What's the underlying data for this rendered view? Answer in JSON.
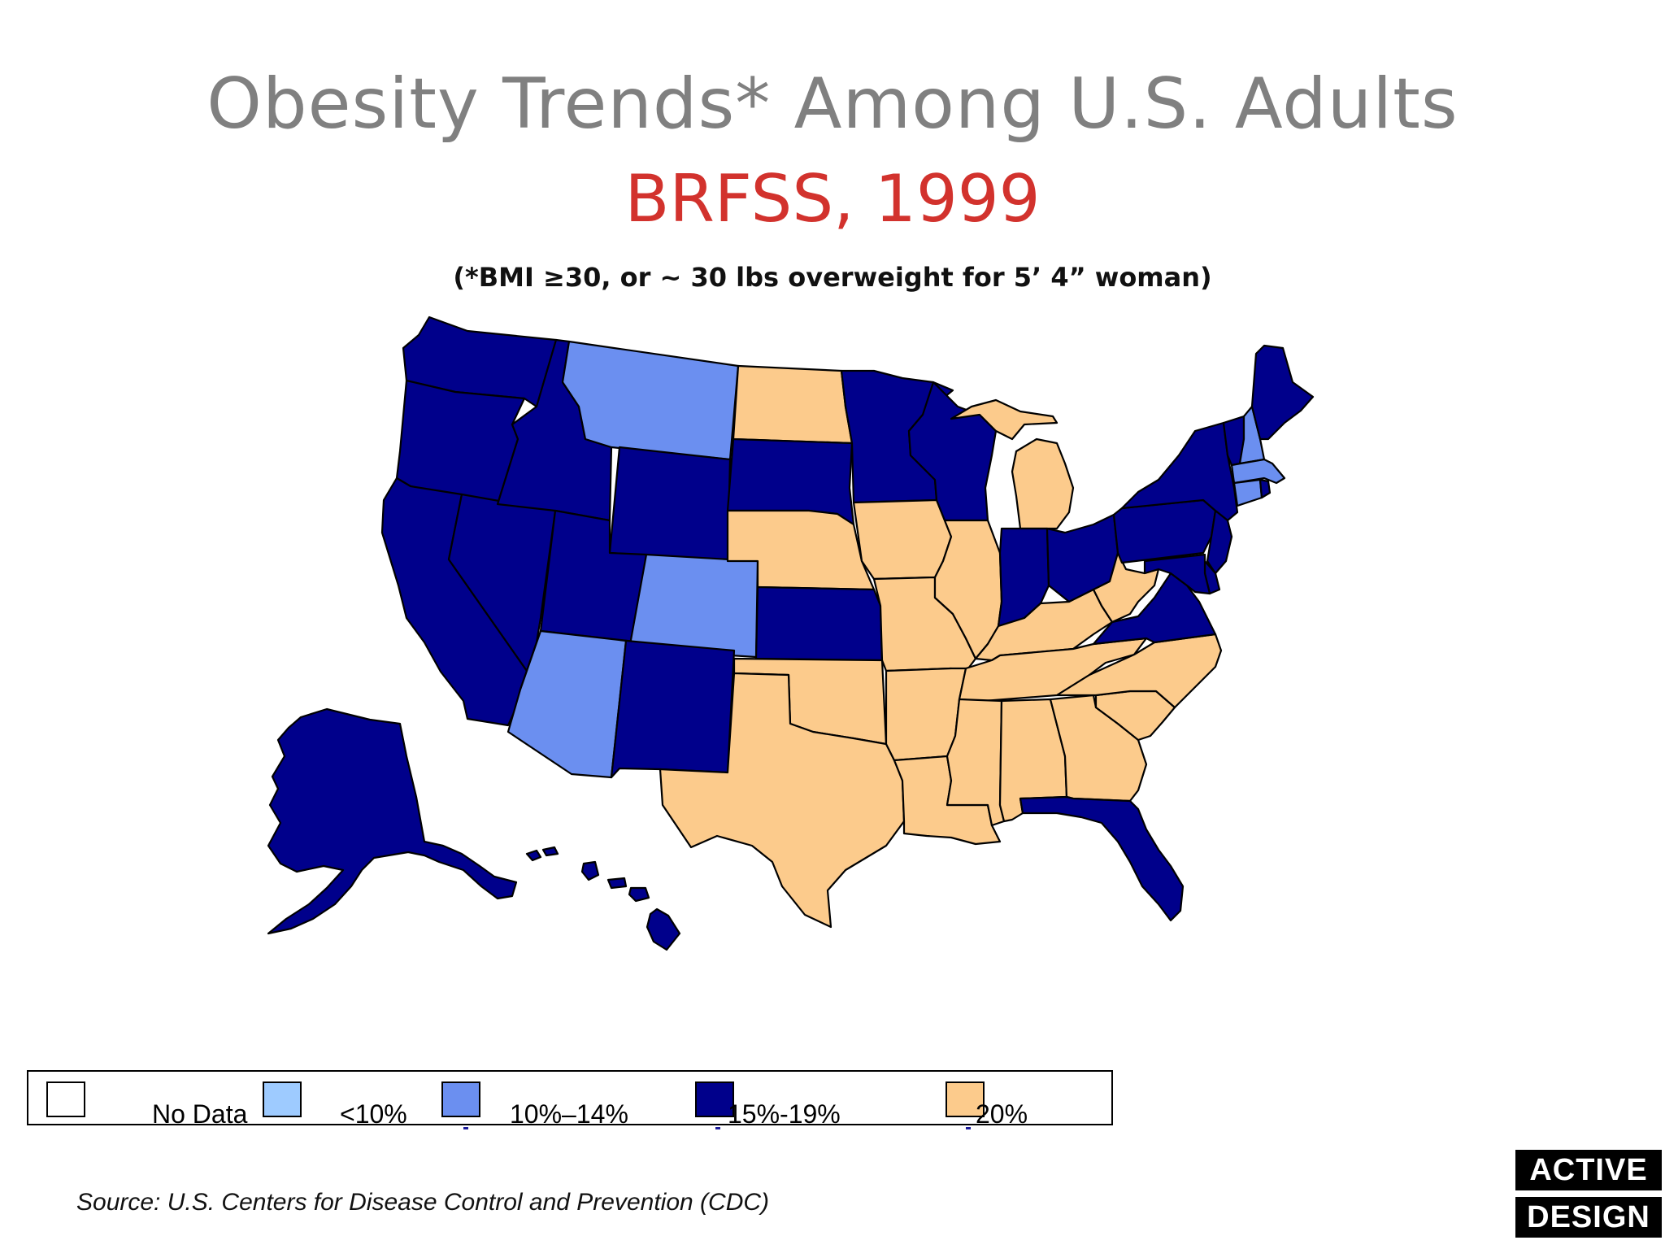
{
  "title": "Obesity Trends* Among U.S. Adults",
  "subtitle": "BRFSS, 1999",
  "note": "(*BMI ≥30, or ~ 30 lbs overweight for 5’ 4” woman)",
  "legend": [
    {
      "label": "No Data",
      "color": "#ffffff"
    },
    {
      "label": "<10%",
      "color": "#9ecbff"
    },
    {
      "label": "10%–14%",
      "color": "#6b8ff0"
    },
    {
      "label": "15%-19%",
      "color": "#00008b"
    },
    {
      "label": "20%",
      "color": "#fccb8c"
    }
  ],
  "source": "Source: U.S. Centers for Disease Control and Prevention (CDC)",
  "logo": {
    "line1": "ACTIVE",
    "line2": "DESIGN"
  },
  "states": {
    "WA": "15%-19%",
    "OR": "15%-19%",
    "CA": "15%-19%",
    "NV": "15%-19%",
    "ID": "15%-19%",
    "MT": "10%–14%",
    "WY": "15%-19%",
    "UT": "15%-19%",
    "AZ": "10%–14%",
    "CO": "10%–14%",
    "NM": "15%-19%",
    "ND": "20%",
    "SD": "15%-19%",
    "NE": "20%",
    "KS": "15%-19%",
    "OK": "20%",
    "TX": "20%",
    "MN": "15%-19%",
    "IA": "20%",
    "MO": "20%",
    "AR": "20%",
    "LA": "20%",
    "WI": "15%-19%",
    "IL": "20%",
    "MI": "20%",
    "IN": "15%-19%",
    "OH": "15%-19%",
    "KY": "20%",
    "TN": "20%",
    "MS": "20%",
    "AL": "20%",
    "GA": "20%",
    "FL": "15%-19%",
    "SC": "20%",
    "NC": "20%",
    "VA": "15%-19%",
    "WV": "20%",
    "PA": "15%-19%",
    "NY": "15%-19%",
    "VT": "15%-19%",
    "NH": "10%–14%",
    "ME": "15%-19%",
    "MA": "10%–14%",
    "CT": "10%–14%",
    "RI": "15%-19%",
    "NJ": "15%-19%",
    "DE": "15%-19%",
    "MD": "15%-19%",
    "AK": "15%-19%",
    "HI": "15%-19%"
  }
}
